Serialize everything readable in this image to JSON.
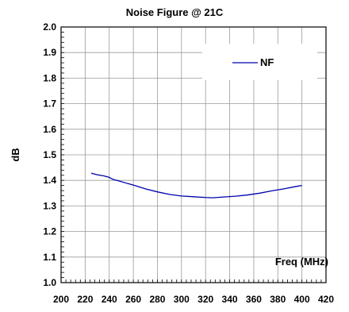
{
  "chart_data": {
    "type": "line",
    "title": "Noise Figure @ 21C",
    "xlabel": "Freq (MHz)",
    "ylabel": "dB",
    "xlim": [
      200,
      420
    ],
    "ylim": [
      1.0,
      2.0
    ],
    "xticks": [
      "200",
      "220",
      "240",
      "260",
      "280",
      "300",
      "320",
      "340",
      "360",
      "380",
      "400",
      "420"
    ],
    "yticks": [
      "1.0",
      "1.1",
      "1.2",
      "1.3",
      "1.4",
      "1.5",
      "1.6",
      "1.7",
      "1.8",
      "1.9",
      "2.0"
    ],
    "grid": true,
    "legend_position": "top-right",
    "series": [
      {
        "name": "NF",
        "color": "#0000aa",
        "x": [
          225,
          230,
          235,
          240,
          243,
          248,
          255,
          262,
          270,
          280,
          290,
          300,
          310,
          320,
          326,
          335,
          345,
          355,
          365,
          375,
          385,
          395,
          400
        ],
        "y": [
          1.428,
          1.422,
          1.418,
          1.412,
          1.404,
          1.398,
          1.388,
          1.379,
          1.367,
          1.355,
          1.345,
          1.339,
          1.336,
          1.333,
          1.332,
          1.335,
          1.338,
          1.343,
          1.35,
          1.359,
          1.367,
          1.376,
          1.38
        ]
      }
    ]
  }
}
